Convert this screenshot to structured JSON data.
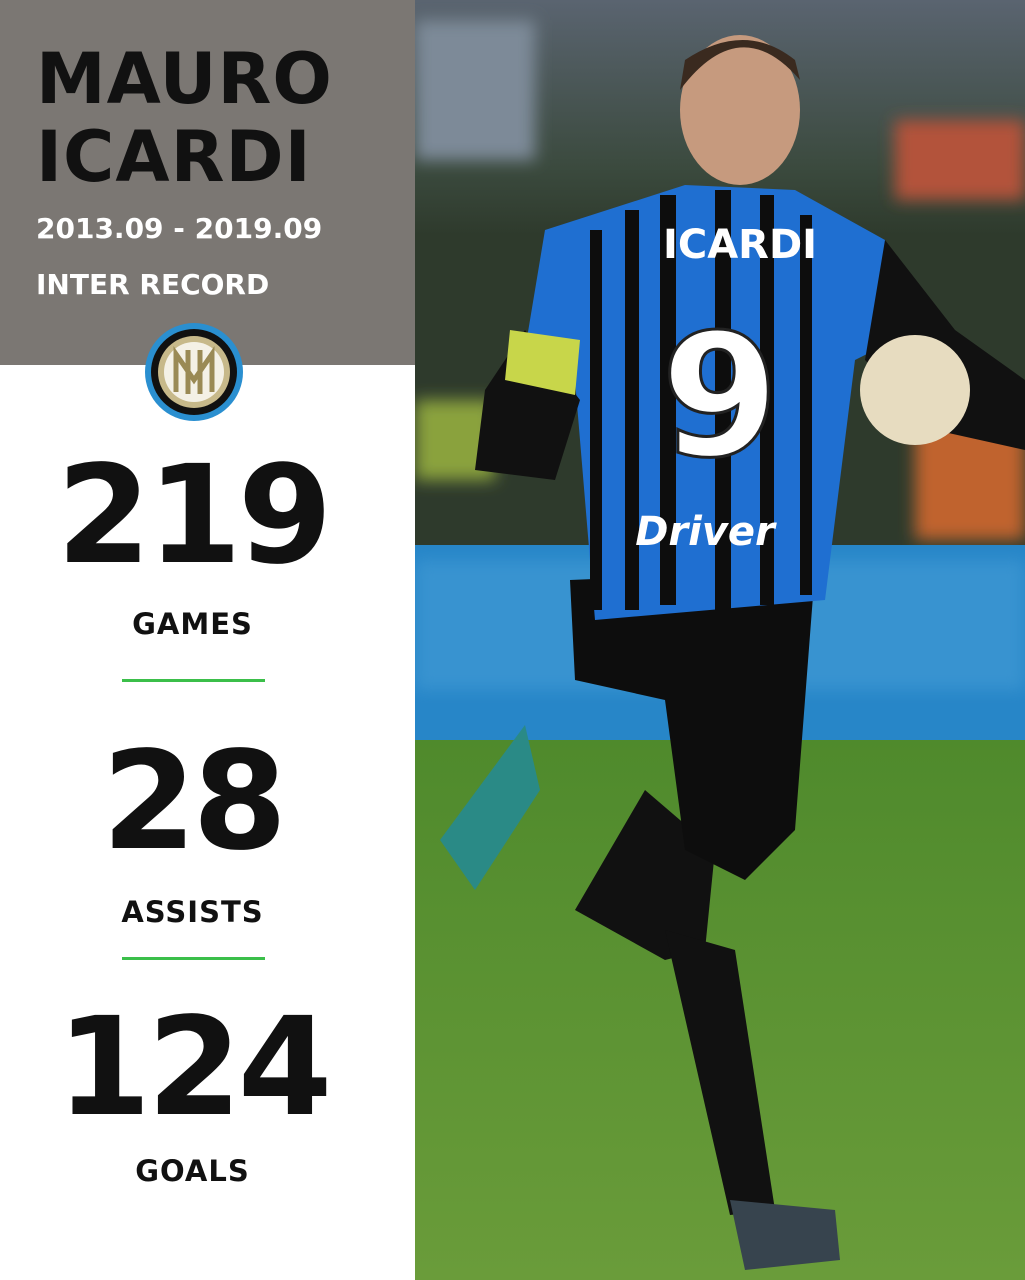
{
  "player": {
    "first_name": "MAURO",
    "last_name": "ICARDI"
  },
  "period": "2013.09 - 2019.09",
  "subtitle": "INTER RECORD",
  "club_logo": "inter-crest-icon",
  "stats": [
    {
      "value": "219",
      "label": "GAMES"
    },
    {
      "value": "28",
      "label": "ASSISTS"
    },
    {
      "value": "124",
      "label": "GOALS"
    }
  ],
  "photo": {
    "shirt_name": "ICARDI",
    "shirt_number": "9",
    "sponsor": "Driver"
  },
  "colors": {
    "header": "#7b7773",
    "divider": "#3bbf4a",
    "jersey_blue": "#1f6fd1",
    "pitch": "#4f8a2c"
  }
}
